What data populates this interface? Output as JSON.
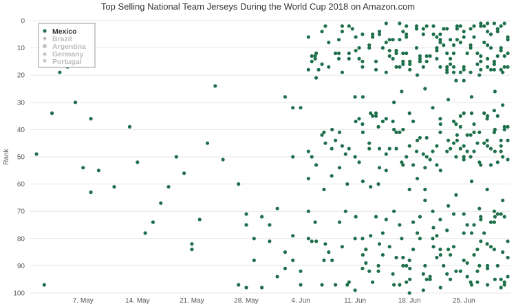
{
  "chart_data": {
    "type": "scatter",
    "title": "Top Selling National Team Jerseys During the World Cup 2018 on Amazon.com",
    "ylabel": "Rank",
    "xlabel": "",
    "ylim": [
      100,
      0
    ],
    "y_ticks": [
      0,
      10,
      20,
      30,
      40,
      50,
      60,
      70,
      80,
      90,
      100
    ],
    "x_range": [
      "2018-05-01",
      "2018-07-01"
    ],
    "x_ticks": [
      {
        "date": "2018-05-07",
        "label": "7. May"
      },
      {
        "date": "2018-05-14",
        "label": "14. May"
      },
      {
        "date": "2018-05-21",
        "label": "21. May"
      },
      {
        "date": "2018-05-28",
        "label": "28. May"
      },
      {
        "date": "2018-06-04",
        "label": "4. Jun"
      },
      {
        "date": "2018-06-11",
        "label": "11. Jun"
      },
      {
        "date": "2018-06-18",
        "label": "18. Jun"
      },
      {
        "date": "2018-06-25",
        "label": "25. Jun"
      }
    ],
    "grid": {
      "horizontal": true,
      "vertical": false
    },
    "legend_position": "top-left",
    "series": [
      {
        "name": "Mexico",
        "visible": true,
        "marker": "circle",
        "color": "#1e6f4a",
        "points": [
          [
            "2018-05-01",
            49
          ],
          [
            "2018-05-02",
            97
          ],
          [
            "2018-05-03",
            34
          ],
          [
            "2018-05-04",
            19
          ],
          [
            "2018-05-05",
            17
          ],
          [
            "2018-05-06",
            30
          ],
          [
            "2018-05-07",
            54
          ],
          [
            "2018-05-08",
            36
          ],
          [
            "2018-05-08",
            63
          ],
          [
            "2018-05-09",
            55
          ],
          [
            "2018-05-11",
            61
          ],
          [
            "2018-05-13",
            39
          ],
          [
            "2018-05-14",
            52
          ],
          [
            "2018-05-15",
            78
          ],
          [
            "2018-05-16",
            74
          ],
          [
            "2018-05-17",
            67
          ],
          [
            "2018-05-18",
            61
          ],
          [
            "2018-05-19",
            50
          ],
          [
            "2018-05-20",
            56
          ],
          [
            "2018-05-21",
            82
          ],
          [
            "2018-05-21",
            84
          ],
          [
            "2018-05-22",
            73
          ],
          [
            "2018-05-23",
            45
          ],
          [
            "2018-05-24",
            24
          ],
          [
            "2018-05-25",
            51
          ],
          [
            "2018-05-27",
            60
          ],
          [
            "2018-05-27",
            97
          ],
          [
            "2018-05-28",
            98
          ],
          [
            "2018-05-28",
            71
          ],
          [
            "2018-05-28",
            75
          ],
          [
            "2018-05-29",
            88
          ],
          [
            "2018-05-29",
            80
          ],
          [
            "2018-05-30",
            72
          ],
          [
            "2018-05-30",
            98
          ],
          [
            "2018-05-31",
            75
          ],
          [
            "2018-05-31",
            81
          ],
          [
            "2018-06-01",
            69
          ],
          [
            "2018-06-01",
            94
          ],
          [
            "2018-06-02",
            85
          ],
          [
            "2018-06-02",
            91
          ],
          [
            "2018-06-02",
            28
          ],
          [
            "2018-06-03",
            32
          ],
          [
            "2018-06-03",
            50
          ],
          [
            "2018-06-03",
            79
          ],
          [
            "2018-06-03",
            88
          ],
          [
            "2018-06-04",
            32
          ],
          [
            "2018-06-04",
            92
          ],
          [
            "2018-06-04",
            97
          ],
          [
            "2018-06-05",
            18
          ],
          [
            "2018-06-05",
            58
          ],
          [
            "2018-06-05",
            70
          ],
          [
            "2018-06-06",
            12
          ],
          [
            "2018-06-06",
            21
          ],
          [
            "2018-06-06",
            53
          ],
          [
            "2018-06-06",
            81
          ],
          [
            "2018-06-07",
            41
          ],
          [
            "2018-06-07",
            62
          ],
          [
            "2018-06-07",
            88
          ],
          [
            "2018-06-08",
            47
          ],
          [
            "2018-06-08",
            57
          ],
          [
            "2018-06-09",
            41
          ],
          [
            "2018-06-09",
            54
          ],
          [
            "2018-06-09",
            74
          ],
          [
            "2018-06-10",
            60
          ],
          [
            "2018-06-11",
            50
          ],
          [
            "2018-06-11",
            80
          ],
          [
            "2018-06-11",
            99
          ],
          [
            "2018-06-11",
            28
          ],
          [
            "2018-06-12",
            41
          ],
          [
            "2018-06-12",
            59
          ],
          [
            "2018-06-12",
            86
          ],
          [
            "2018-06-13",
            34
          ],
          [
            "2018-06-13",
            61
          ],
          [
            "2018-06-13",
            79
          ],
          [
            "2018-06-14",
            39
          ],
          [
            "2018-06-14",
            60
          ],
          [
            "2018-06-14",
            90
          ],
          [
            "2018-06-15",
            36
          ],
          [
            "2018-06-15",
            55
          ],
          [
            "2018-06-15",
            73
          ],
          [
            "2018-06-16",
            30
          ],
          [
            "2018-06-16",
            40
          ],
          [
            "2018-06-16",
            70
          ],
          [
            "2018-06-16",
            97
          ],
          [
            "2018-06-17",
            26
          ],
          [
            "2018-06-17",
            52
          ],
          [
            "2018-06-17",
            80
          ],
          [
            "2018-06-18",
            34
          ],
          [
            "2018-06-18",
            46
          ],
          [
            "2018-06-18",
            62
          ],
          [
            "2018-06-18",
            88
          ],
          [
            "2018-06-18",
            100
          ],
          [
            "2018-06-19",
            20
          ],
          [
            "2018-06-19",
            44
          ],
          [
            "2018-06-19",
            58
          ],
          [
            "2018-06-19",
            78
          ],
          [
            "2018-06-20",
            25
          ],
          [
            "2018-06-20",
            54
          ],
          [
            "2018-06-20",
            66
          ],
          [
            "2018-06-20",
            90
          ],
          [
            "2018-06-21",
            32
          ],
          [
            "2018-06-21",
            48
          ],
          [
            "2018-06-21",
            80
          ],
          [
            "2018-06-22",
            38
          ],
          [
            "2018-06-22",
            55
          ],
          [
            "2018-06-22",
            86
          ],
          [
            "2018-06-22",
            98
          ],
          [
            "2018-06-23",
            29
          ],
          [
            "2018-06-23",
            44
          ],
          [
            "2018-06-23",
            68
          ],
          [
            "2018-06-23",
            84
          ],
          [
            "2018-06-24",
            22
          ],
          [
            "2018-06-24",
            50
          ],
          [
            "2018-06-24",
            64
          ],
          [
            "2018-06-24",
            92
          ],
          [
            "2018-06-25",
            34
          ],
          [
            "2018-06-25",
            46
          ],
          [
            "2018-06-25",
            71
          ],
          [
            "2018-06-25",
            88
          ],
          [
            "2018-06-26",
            28
          ],
          [
            "2018-06-26",
            59
          ],
          [
            "2018-06-26",
            78
          ],
          [
            "2018-06-26",
            97
          ],
          [
            "2018-06-27",
            41
          ],
          [
            "2018-06-27",
            52
          ],
          [
            "2018-06-27",
            69
          ],
          [
            "2018-06-27",
            90
          ],
          [
            "2018-06-28",
            36
          ],
          [
            "2018-06-28",
            62
          ],
          [
            "2018-06-28",
            82
          ],
          [
            "2018-06-29",
            26
          ],
          [
            "2018-06-29",
            48
          ],
          [
            "2018-06-29",
            72
          ],
          [
            "2018-06-29",
            95
          ],
          [
            "2018-06-30",
            19
          ],
          [
            "2018-06-30",
            31
          ],
          [
            "2018-06-30",
            50
          ],
          [
            "2018-06-30",
            85
          ],
          [
            "2018-06-12",
            28
          ],
          [
            "2018-06-10",
            97
          ],
          [
            "2018-06-14",
            92
          ],
          [
            "2018-06-20",
            62
          ],
          [
            "2018-06-27",
            20
          ],
          [
            "2018-06-29",
            40
          ],
          [
            "2018-06-24",
            38
          ],
          [
            "2018-06-21",
            70
          ],
          [
            "2018-06-25",
            22
          ],
          [
            "2018-06-28",
            44
          ],
          [
            "2018-06-30",
            66
          ],
          [
            "2018-06-26",
            34
          ]
        ]
      },
      {
        "name": "Brazil",
        "visible": false,
        "marker": "diamond",
        "color": "#bbbbbb"
      },
      {
        "name": "Argentina",
        "visible": false,
        "marker": "square",
        "color": "#bbbbbb"
      },
      {
        "name": "Germany",
        "visible": false,
        "marker": "triangle",
        "color": "#bbbbbb"
      },
      {
        "name": "Portugal",
        "visible": false,
        "marker": "triangle-down",
        "color": "#bbbbbb"
      }
    ],
    "dense_region": {
      "start": "2018-06-05",
      "end": "2018-07-01",
      "top_cluster": {
        "from": 1,
        "to": 19
      },
      "mid_cluster": {
        "from": 33,
        "to": 54
      },
      "bottom_cluster": {
        "from": 70,
        "to": 99
      }
    }
  }
}
